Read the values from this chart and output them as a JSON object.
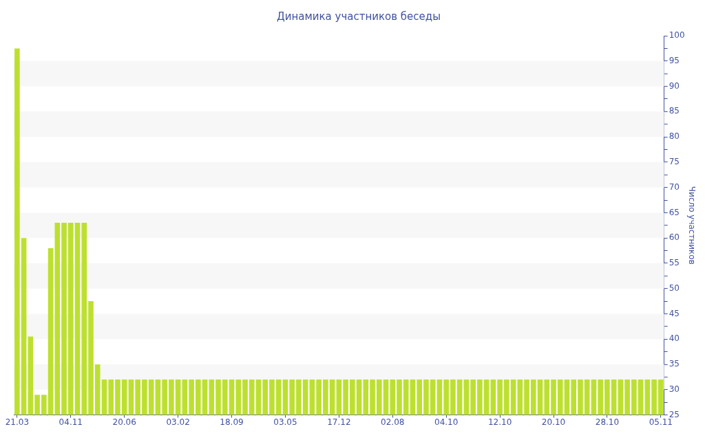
{
  "chart_data": {
    "type": "bar",
    "title": "Динамика участников беседы",
    "ylabel": "Число участников",
    "categories": [
      "21.03",
      null,
      null,
      null,
      null,
      null,
      null,
      null,
      "04.11",
      null,
      null,
      null,
      null,
      null,
      null,
      null,
      "20.06",
      null,
      null,
      null,
      null,
      null,
      null,
      null,
      "03.02",
      null,
      null,
      null,
      null,
      null,
      null,
      null,
      "18.09",
      null,
      null,
      null,
      null,
      null,
      null,
      null,
      "03.05",
      null,
      null,
      null,
      null,
      null,
      null,
      null,
      "17.12",
      null,
      null,
      null,
      null,
      null,
      null,
      null,
      "02.08",
      null,
      null,
      null,
      null,
      null,
      null,
      null,
      "04.10",
      null,
      null,
      null,
      null,
      null,
      null,
      null,
      "12.10",
      null,
      null,
      null,
      null,
      null,
      null,
      null,
      "20.10",
      null,
      null,
      null,
      null,
      null,
      null,
      null,
      "28.10",
      null,
      null,
      null,
      null,
      null,
      null,
      null,
      "05.11"
    ],
    "values": [
      97.5,
      60,
      40.5,
      29,
      29,
      58,
      63,
      63,
      63,
      63,
      63,
      47.5,
      35,
      32,
      32,
      32,
      32,
      32,
      32,
      32,
      32,
      32,
      32,
      32,
      32,
      32,
      32,
      32,
      32,
      32,
      32,
      32,
      32,
      32,
      32,
      32,
      32,
      32,
      32,
      32,
      32,
      32,
      32,
      32,
      32,
      32,
      32,
      32,
      32,
      32,
      32,
      32,
      32,
      32,
      32,
      32,
      32,
      32,
      32,
      32,
      32,
      32,
      32,
      32,
      32,
      32,
      32,
      32,
      32,
      32,
      32,
      32,
      32,
      32,
      32,
      32,
      32,
      32,
      32,
      32,
      32,
      32,
      32,
      32,
      32,
      32,
      32,
      32,
      32,
      32,
      32,
      32,
      32,
      32,
      32,
      32,
      32
    ],
    "color": "#bde030",
    "ylim": [
      25,
      100
    ],
    "yticks": [
      25,
      {
        "value": 27.5,
        "label": null
      },
      30,
      {
        "value": 32.5,
        "label": null
      },
      35,
      {
        "value": 37.5,
        "label": null
      },
      40,
      {
        "value": 42.5,
        "label": null
      },
      45,
      {
        "value": 47.5,
        "label": null
      },
      50,
      {
        "value": 52.5,
        "label": null
      },
      55,
      {
        "value": 57.5,
        "label": null
      },
      60,
      {
        "value": 62.5,
        "label": null
      },
      65,
      {
        "value": 67.5,
        "label": null
      },
      70,
      {
        "value": 72.5,
        "label": null
      },
      75,
      {
        "value": 77.5,
        "label": null
      },
      80,
      {
        "value": 82.5,
        "label": null
      },
      85,
      {
        "value": 87.5,
        "label": null
      },
      90,
      {
        "value": 92.5,
        "label": null
      },
      95,
      {
        "value": 97.5,
        "label": null
      },
      100
    ]
  }
}
